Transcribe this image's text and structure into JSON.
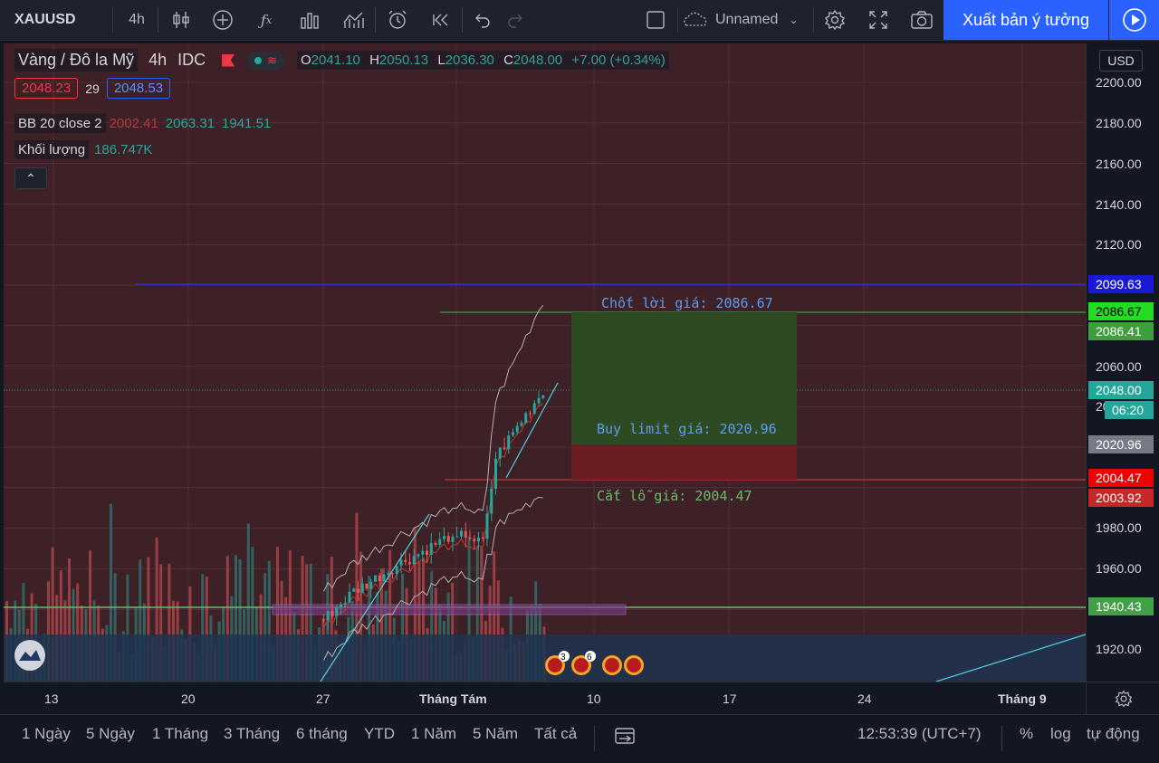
{
  "toolbar": {
    "symbol": "XAUUSD",
    "interval": "4h",
    "layout_name": "Unnamed",
    "publish_label": "Xuất bản ý tưởng"
  },
  "legend": {
    "title": "Vàng / Đô la Mỹ",
    "interval": "4h",
    "exchange": "IDC",
    "o_label": "O",
    "o": "2041.10",
    "h_label": "H",
    "h": "2050.13",
    "l_label": "L",
    "l": "2036.30",
    "c_label": "C",
    "c": "2048.00",
    "change": "+7.00 (+0.34%)",
    "sell_price": "2048.23",
    "spread": "29",
    "buy_price": "2048.53",
    "bb_label": "BB 20 close 2",
    "bb_basis": "2002.41",
    "bb_upper": "2063.31",
    "bb_lower": "1941.51",
    "vol_label": "Khối lượng",
    "vol_value": "186.747K"
  },
  "price_axis": {
    "currency": "USD",
    "ticks": [
      "2200.00",
      "2180.00",
      "2160.00",
      "2140.00",
      "2120.00",
      "2060.00",
      "1980.00",
      "1960.00",
      "1920.00"
    ],
    "tags": {
      "blue_line": "2099.63",
      "take_profit": "2086.67",
      "tp_green": "2086.41",
      "current": "2048.00",
      "countdown": "06:20",
      "entry": "2020.96",
      "stop_loss": "2004.47",
      "sl2": "2003.92",
      "support": "1940.43",
      "hidden_partial": "20"
    }
  },
  "annotations": {
    "tp_text": "Chốt lời giá: 2086.67",
    "entry_text": "Buy limit giá: 2020.96",
    "sl_text": "Cắt lỗ giá: 2004.47",
    "event_count_1": "3",
    "event_count_2": "6"
  },
  "time_axis": {
    "labels": [
      "13",
      "20",
      "27",
      "Tháng Tám",
      "10",
      "17",
      "24",
      "Tháng 9"
    ]
  },
  "bottom": {
    "ranges": [
      "1 Ngày",
      "5 Ngày",
      "1 Tháng",
      "3 Tháng",
      "6 tháng",
      "YTD",
      "1 Năm",
      "5 Năm",
      "Tất cả"
    ],
    "time": "12:53:39 (UTC+7)",
    "percent": "%",
    "log": "log",
    "auto": "tự động"
  },
  "colors": {
    "background": "#131722",
    "chart_bg": "#3e2027",
    "up": "#26a69a",
    "down": "#ef5350",
    "accent": "#2962ff",
    "tp_zone": "#2d4a22",
    "sl_zone": "#6a1c1f"
  }
}
